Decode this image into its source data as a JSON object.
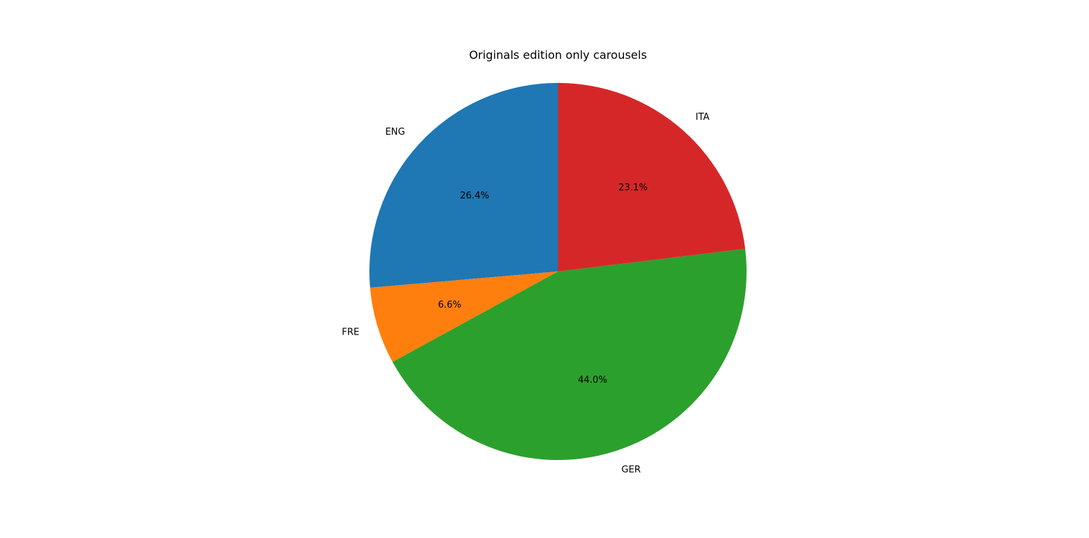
{
  "chart_data": {
    "type": "pie",
    "title": "Originals edition only carousels",
    "slices": [
      {
        "label": "ENG",
        "percent": 26.4,
        "display": "26.4%",
        "color": "#1f77b4"
      },
      {
        "label": "FRE",
        "percent": 6.6,
        "display": "6.6%",
        "color": "#ff7f0e"
      },
      {
        "label": "GER",
        "percent": 44.0,
        "display": "44.0%",
        "color": "#2ca02c"
      },
      {
        "label": "ITA",
        "percent": 23.1,
        "display": "23.1%",
        "color": "#d62728"
      }
    ],
    "start_angle_deg": 90,
    "direction": "counterclockwise",
    "legend": "none"
  }
}
